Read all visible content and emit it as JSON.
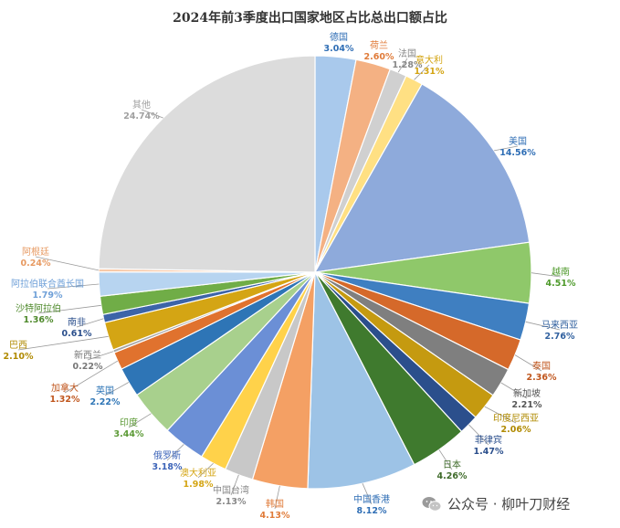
{
  "chart_data": {
    "type": "pie",
    "title": "2024年前3季度出口国家地区占比总出口额占比",
    "slices": [
      {
        "label": "德国",
        "value_label": "3.04%",
        "value": 3.04,
        "color": "#a9c9ec"
      },
      {
        "label": "荷兰",
        "value_label": "2.60%",
        "value": 2.6,
        "color": "#f4b183"
      },
      {
        "label": "法国",
        "value_label": "1.28%",
        "value": 1.28,
        "color": "#d0d0d0"
      },
      {
        "label": "意大利",
        "value_label": "1.31%",
        "value": 1.31,
        "color": "#ffe083"
      },
      {
        "label": "美国",
        "value_label": "14.56%",
        "value": 14.56,
        "color": "#8eaadb"
      },
      {
        "label": "越南",
        "value_label": "4.51%",
        "value": 4.51,
        "color": "#8fc86a"
      },
      {
        "label": "马来西亚",
        "value_label": "2.76%",
        "value": 2.76,
        "color": "#3f7fc1"
      },
      {
        "label": "泰国",
        "value_label": "2.36%",
        "value": 2.36,
        "color": "#d5692a"
      },
      {
        "label": "新加坡",
        "value_label": "2.21%",
        "value": 2.21,
        "color": "#7f7f7f"
      },
      {
        "label": "印度尼西亚",
        "value_label": "2.06%",
        "value": 2.06,
        "color": "#c59a10"
      },
      {
        "label": "菲律宾",
        "value_label": "1.47%",
        "value": 1.47,
        "color": "#2b4f8c"
      },
      {
        "label": "日本",
        "value_label": "4.26%",
        "value": 4.26,
        "color": "#3f7a2e"
      },
      {
        "label": "中国香港",
        "value_label": "8.12%",
        "value": 8.12,
        "color": "#9dc3e6"
      },
      {
        "label": "韩国",
        "value_label": "4.13%",
        "value": 4.13,
        "color": "#f4a064"
      },
      {
        "label": "中国台湾",
        "value_label": "2.13%",
        "value": 2.13,
        "color": "#c8c8c8"
      },
      {
        "label": "澳大利亚",
        "value_label": "1.98%",
        "value": 1.98,
        "color": "#ffd24a"
      },
      {
        "label": "俄罗斯",
        "value_label": "3.18%",
        "value": 3.18,
        "color": "#6b8fd6"
      },
      {
        "label": "印度",
        "value_label": "3.44%",
        "value": 3.44,
        "color": "#a8d08d"
      },
      {
        "label": "英国",
        "value_label": "2.22%",
        "value": 2.22,
        "color": "#2e75b6"
      },
      {
        "label": "加拿大",
        "value_label": "1.32%",
        "value": 1.32,
        "color": "#e0722e"
      },
      {
        "label": "新西兰",
        "value_label": "0.22%",
        "value": 0.22,
        "color": "#a5a5a5"
      },
      {
        "label": "巴西",
        "value_label": "2.10%",
        "value": 2.1,
        "color": "#d4a514"
      },
      {
        "label": "南非",
        "value_label": "0.61%",
        "value": 0.61,
        "color": "#3c64a8"
      },
      {
        "label": "沙特阿拉伯",
        "value_label": "1.36%",
        "value": 1.36,
        "color": "#70ad47"
      },
      {
        "label": "阿拉伯联合酋长国",
        "value_label": "1.79%",
        "value": 1.79,
        "color": "#b7d4f0"
      },
      {
        "label": "阿根廷",
        "value_label": "0.24%",
        "value": 0.24,
        "color": "#f8c9a8"
      },
      {
        "label": "其他",
        "value_label": "24.74%",
        "value": 24.74,
        "color": "#dcdcdc"
      }
    ]
  },
  "watermark": {
    "text": "公众号 · 柳叶刀财经",
    "icon": "wechat-icon"
  }
}
